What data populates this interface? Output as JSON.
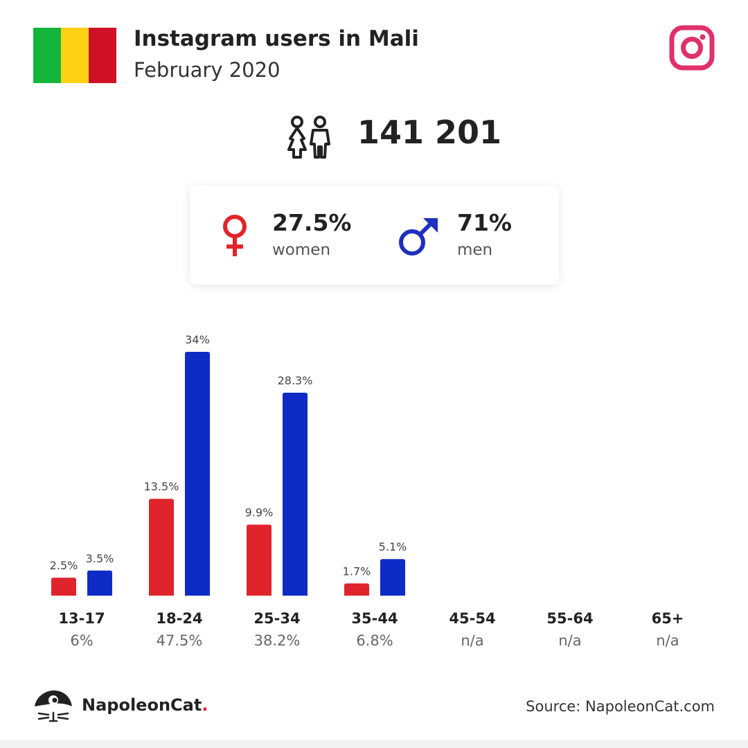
{
  "header": {
    "title": "Instagram users in Mali",
    "subtitle": "February 2020",
    "flag_colors": [
      "#14b53a",
      "#fcd116",
      "#ce1126"
    ],
    "brand_icon": "instagram-icon",
    "brand_color": "#e1306c"
  },
  "summary": {
    "icon": "people-icon",
    "total": "141 201"
  },
  "gender": {
    "women": {
      "pct": "27.5%",
      "label": "women",
      "icon": "female-symbol-icon",
      "color": "#e0242b"
    },
    "men": {
      "pct": "71%",
      "label": "men",
      "icon": "male-symbol-icon",
      "color": "#1f2fbf"
    }
  },
  "chart_data": {
    "type": "bar",
    "categories": [
      "13-17",
      "18-24",
      "25-34",
      "35-44",
      "45-54",
      "55-64",
      "65+"
    ],
    "category_totals": [
      "6%",
      "47.5%",
      "38.2%",
      "6.8%",
      "n/a",
      "n/a",
      "n/a"
    ],
    "series": [
      {
        "name": "women",
        "color": "#e0242b",
        "values": [
          2.5,
          13.5,
          9.9,
          1.7,
          null,
          null,
          null
        ],
        "labels": [
          "2.5%",
          "13.5%",
          "9.9%",
          "1.7%",
          "",
          "",
          ""
        ]
      },
      {
        "name": "men",
        "color": "#0f2bc6",
        "values": [
          3.5,
          34,
          28.3,
          5.1,
          null,
          null,
          null
        ],
        "labels": [
          "3.5%",
          "34%",
          "28.3%",
          "5.1%",
          "",
          "",
          ""
        ]
      }
    ],
    "ylim": [
      0,
      34
    ]
  },
  "footer": {
    "brand_name": "NapoleonCat",
    "brand_dot": ".",
    "brand_icon": "napoleoncat-logo-icon",
    "source": "Source: NapoleonCat.com"
  }
}
